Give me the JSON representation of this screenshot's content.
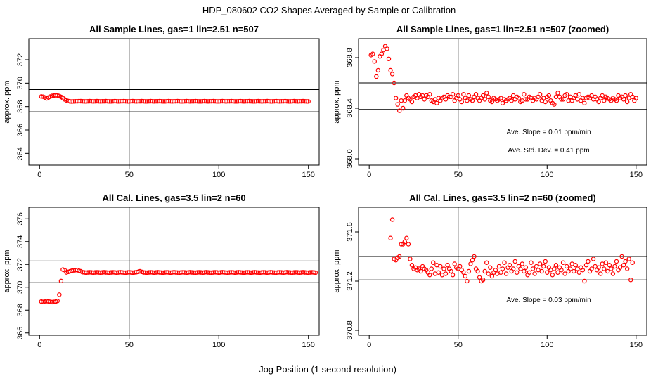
{
  "figure": {
    "title": "HDP_080602  CO2 Shapes Averaged by Sample or Calibration",
    "xlabel": "Jog Position (1 second resolution)"
  },
  "chart_data": [
    {
      "type": "scatter",
      "title": "All Sample Lines, gas=1 lin=2.51 n=507",
      "ylabel": "approx. ppm",
      "xlim": [
        -6,
        156
      ],
      "ylim": [
        363.0,
        373.8
      ],
      "xticks": [
        "0",
        "50",
        "100",
        "150"
      ],
      "yticks": [
        "364",
        "366",
        "368",
        "370",
        "372"
      ],
      "hlines": [
        367.55,
        369.45
      ],
      "vline": 50,
      "color": "#ff0000",
      "series": [
        {
          "x_start": 1,
          "x_step": 1,
          "values": [
            368.86,
            368.84,
            368.77,
            368.7,
            368.78,
            368.85,
            368.91,
            368.94,
            368.96,
            368.95,
            368.9,
            368.82,
            368.72,
            368.61,
            368.53,
            368.47,
            368.44,
            368.43,
            368.44,
            368.45,
            368.45,
            368.46,
            368.46,
            368.45,
            368.44,
            368.44,
            368.45,
            368.46,
            368.45,
            368.44,
            368.45,
            368.46,
            368.45,
            368.44,
            368.45,
            368.45,
            368.46,
            368.45,
            368.44,
            368.44,
            368.45,
            368.46,
            368.45,
            368.44,
            368.45,
            368.45,
            368.46,
            368.45,
            368.44,
            368.44,
            368.45,
            368.46,
            368.45,
            368.44,
            368.45,
            368.45,
            368.46,
            368.45,
            368.44,
            368.44,
            368.45,
            368.46,
            368.45,
            368.44,
            368.45,
            368.45,
            368.46,
            368.45,
            368.44,
            368.44,
            368.45,
            368.46,
            368.45,
            368.44,
            368.45,
            368.45,
            368.46,
            368.45,
            368.44,
            368.44,
            368.45,
            368.46,
            368.45,
            368.44,
            368.45,
            368.45,
            368.46,
            368.45,
            368.44,
            368.44,
            368.45,
            368.46,
            368.45,
            368.44,
            368.45,
            368.45,
            368.46,
            368.45,
            368.44,
            368.44,
            368.45,
            368.46,
            368.45,
            368.44,
            368.45,
            368.45,
            368.46,
            368.45,
            368.44,
            368.44,
            368.45,
            368.46,
            368.45,
            368.44,
            368.45,
            368.45,
            368.46,
            368.45,
            368.44,
            368.44,
            368.45,
            368.46,
            368.45,
            368.44,
            368.45,
            368.45,
            368.46,
            368.45,
            368.44,
            368.44,
            368.45,
            368.46,
            368.45,
            368.44,
            368.45,
            368.45,
            368.46,
            368.45,
            368.44,
            368.44,
            368.45,
            368.46,
            368.45,
            368.44,
            368.45,
            368.45,
            368.46,
            368.45,
            368.44,
            368.44
          ]
        }
      ],
      "annotations": []
    },
    {
      "type": "scatter",
      "title": "All Sample Lines, gas=1 lin=2.51 n=507 (zoomed)",
      "ylabel": "approx. ppm",
      "xlim": [
        -6,
        156
      ],
      "ylim": [
        367.95,
        368.95
      ],
      "xticks": [
        "0",
        "50",
        "100",
        "150"
      ],
      "yticks": [
        "368.0",
        "368.4",
        "368.8"
      ],
      "hlines": [
        368.39,
        368.6
      ],
      "vline": 50,
      "color": "#ff0000",
      "series": [
        {
          "x_start": 1,
          "x_step": 1,
          "values": [
            368.82,
            368.83,
            368.77,
            368.65,
            368.7,
            368.81,
            368.83,
            368.86,
            368.89,
            368.87,
            368.79,
            368.7,
            368.67,
            368.6,
            368.48,
            368.43,
            368.38,
            368.46,
            368.4,
            368.46,
            368.5,
            368.48,
            368.47,
            368.45,
            368.49,
            368.5,
            368.48,
            368.51,
            368.49,
            368.5,
            368.47,
            368.5,
            368.49,
            368.51,
            368.46,
            368.45,
            368.47,
            368.44,
            368.48,
            368.46,
            368.48,
            368.49,
            368.47,
            368.5,
            368.49,
            368.49,
            368.51,
            368.46,
            368.48,
            368.5,
            368.47,
            368.45,
            368.51,
            368.48,
            368.46,
            368.5,
            368.47,
            368.46,
            368.49,
            368.51,
            368.48,
            368.46,
            368.48,
            368.5,
            368.47,
            368.52,
            368.49,
            368.46,
            368.45,
            368.48,
            368.47,
            368.46,
            368.47,
            368.48,
            368.44,
            368.47,
            368.46,
            368.47,
            368.48,
            368.46,
            368.5,
            368.47,
            368.49,
            368.48,
            368.45,
            368.46,
            368.51,
            368.47,
            368.47,
            368.49,
            368.48,
            368.46,
            368.48,
            368.47,
            368.49,
            368.51,
            368.46,
            368.48,
            368.45,
            368.49,
            368.5,
            368.46,
            368.44,
            368.43,
            368.49,
            368.52,
            368.49,
            368.47,
            368.47,
            368.5,
            368.51,
            368.46,
            368.49,
            368.46,
            368.48,
            368.5,
            368.47,
            368.51,
            368.46,
            368.48,
            368.44,
            368.48,
            368.49,
            368.48,
            368.5,
            368.47,
            368.49,
            368.47,
            368.45,
            368.48,
            368.5,
            368.46,
            368.49,
            368.48,
            368.47,
            368.46,
            368.48,
            368.47,
            368.46,
            368.5,
            368.48,
            368.49,
            368.47,
            368.5,
            368.45,
            368.48,
            368.51,
            368.49,
            368.46,
            368.48
          ]
        }
      ],
      "annotations": [
        "Ave. Slope =  0.01  ppm/min",
        "Ave. Std. Dev. =  0.41  ppm"
      ]
    },
    {
      "type": "scatter",
      "title": "All Cal. Lines, gas=3.5 lin=2 n=60",
      "ylabel": "approx. ppm",
      "xlim": [
        -6,
        156
      ],
      "ylim": [
        365.8,
        377.0
      ],
      "xticks": [
        "0",
        "50",
        "100",
        "150"
      ],
      "yticks": [
        "366",
        "368",
        "370",
        "372",
        "374",
        "376"
      ],
      "hlines": [
        370.4,
        372.3
      ],
      "vline": 50,
      "color": "#ff0000",
      "series": [
        {
          "x_start": 1,
          "x_step": 1,
          "values": [
            368.75,
            368.72,
            368.74,
            368.78,
            368.76,
            368.73,
            368.7,
            368.72,
            368.75,
            368.8,
            369.35,
            370.55,
            371.55,
            371.5,
            371.3,
            371.35,
            371.4,
            371.45,
            371.48,
            371.5,
            371.52,
            371.45,
            371.4,
            371.32,
            371.3,
            371.28,
            371.3,
            371.31,
            371.3,
            371.28,
            371.3,
            371.31,
            371.3,
            371.28,
            371.3,
            371.32,
            371.3,
            371.29,
            371.28,
            371.3,
            371.31,
            371.3,
            371.28,
            371.3,
            371.32,
            371.3,
            371.29,
            371.28,
            371.3,
            371.31,
            371.3,
            371.28,
            371.3,
            371.32,
            371.35,
            371.4,
            371.35,
            371.3,
            371.29,
            371.28,
            371.3,
            371.31,
            371.3,
            371.28,
            371.3,
            371.32,
            371.3,
            371.29,
            371.28,
            371.3,
            371.31,
            371.3,
            371.28,
            371.3,
            371.32,
            371.3,
            371.29,
            371.28,
            371.3,
            371.31,
            371.3,
            371.28,
            371.3,
            371.32,
            371.3,
            371.29,
            371.28,
            371.3,
            371.31,
            371.3,
            371.28,
            371.3,
            371.32,
            371.3,
            371.29,
            371.28,
            371.3,
            371.31,
            371.3,
            371.28,
            371.3,
            371.32,
            371.3,
            371.29,
            371.28,
            371.3,
            371.31,
            371.3,
            371.28,
            371.3,
            371.32,
            371.3,
            371.29,
            371.28,
            371.3,
            371.31,
            371.3,
            371.28,
            371.3,
            371.32,
            371.3,
            371.29,
            371.28,
            371.3,
            371.31,
            371.3,
            371.28,
            371.3,
            371.32,
            371.3,
            371.29,
            371.28,
            371.3,
            371.31,
            371.3,
            371.28,
            371.3,
            371.32,
            371.3,
            371.29,
            371.28,
            371.3,
            371.31,
            371.3,
            371.28,
            371.3,
            371.32,
            371.3,
            371.29,
            371.28,
            371.3,
            371.31,
            371.3,
            371.28
          ]
        }
      ],
      "annotations": []
    },
    {
      "type": "scatter",
      "title": "All Cal. Lines, gas=3.5 lin=2 n=60 (zoomed)",
      "ylabel": "approx. ppm",
      "xlim": [
        -6,
        156
      ],
      "ylim": [
        370.76,
        371.8
      ],
      "xticks": [
        "0",
        "50",
        "100",
        "150"
      ],
      "yticks": [
        "370.8",
        "371.2",
        "371.6"
      ],
      "hlines": [
        371.21,
        371.4
      ],
      "vline": 50,
      "color": "#ff0000",
      "series": [
        {
          "x_start": 12,
          "x_step": 1,
          "values": [
            371.55,
            371.7,
            371.38,
            371.37,
            371.39,
            371.4,
            371.5,
            371.5,
            371.52,
            371.55,
            371.5,
            371.38,
            371.33,
            371.3,
            371.31,
            371.29,
            371.3,
            371.28,
            371.32,
            371.3,
            371.29,
            371.27,
            371.25,
            371.3,
            371.35,
            371.26,
            371.33,
            371.27,
            371.32,
            371.25,
            371.3,
            371.26,
            371.33,
            371.3,
            371.28,
            371.25,
            371.34,
            371.31,
            371.3,
            371.32,
            371.29,
            371.27,
            371.24,
            371.2,
            371.28,
            371.34,
            371.37,
            371.4,
            371.3,
            371.28,
            371.23,
            371.2,
            371.21,
            371.28,
            371.35,
            371.26,
            371.31,
            371.24,
            371.27,
            371.29,
            371.26,
            371.32,
            371.27,
            371.3,
            371.35,
            371.26,
            371.31,
            371.33,
            371.28,
            371.3,
            371.36,
            371.27,
            371.32,
            371.3,
            371.34,
            371.28,
            371.31,
            371.25,
            371.27,
            371.35,
            371.3,
            371.26,
            371.32,
            371.29,
            371.34,
            371.28,
            371.32,
            371.36,
            371.27,
            371.31,
            371.29,
            371.25,
            371.3,
            371.33,
            371.27,
            371.31,
            371.29,
            371.35,
            371.26,
            371.32,
            371.28,
            371.3,
            371.34,
            371.28,
            371.33,
            371.3,
            371.27,
            371.31,
            371.29,
            371.2,
            371.33,
            371.36,
            371.28,
            371.3,
            371.38,
            371.32,
            371.29,
            371.31,
            371.26,
            371.34,
            371.3,
            371.35,
            371.28,
            371.33,
            371.3,
            371.26,
            371.32,
            371.36,
            371.29,
            371.31,
            371.4,
            371.33,
            371.36,
            371.3,
            371.38,
            371.21,
            371.35
          ]
        }
      ],
      "annotations": [
        "Ave. Slope =  0.03  ppm/min"
      ]
    }
  ]
}
